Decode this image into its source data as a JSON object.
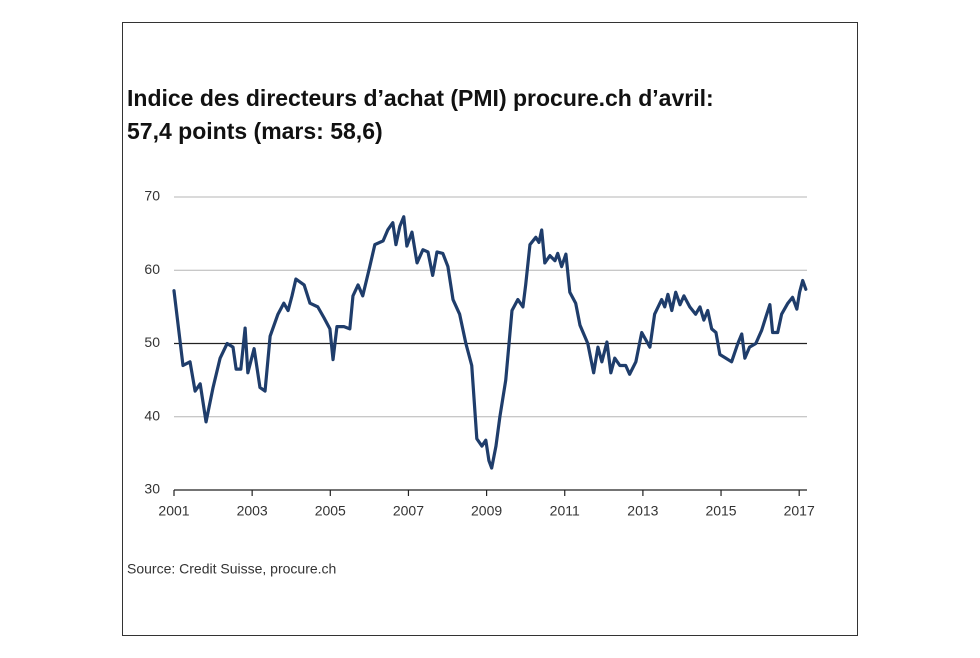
{
  "chart_data": {
    "type": "line",
    "title": [
      "Indice des directeurs d’achat (PMI) procure.ch d’avril:",
      "57,4 points (mars: 58,6)"
    ],
    "source": "Source: Credit Suisse, procure.ch",
    "x": [
      2001.0,
      2001.23,
      2001.41,
      2001.54,
      2001.67,
      2001.82,
      2002.0,
      2002.18,
      2002.36,
      2002.51,
      2002.59,
      2002.71,
      2002.82,
      2002.89,
      2003.05,
      2003.2,
      2003.33,
      2003.46,
      2003.66,
      2003.81,
      2003.92,
      2004.02,
      2004.12,
      2004.33,
      2004.48,
      2004.68,
      2004.84,
      2004.99,
      2005.07,
      2005.17,
      2005.35,
      2005.5,
      2005.58,
      2005.71,
      2005.83,
      2006.01,
      2006.14,
      2006.35,
      2006.47,
      2006.6,
      2006.68,
      2006.78,
      2006.88,
      2006.96,
      2007.09,
      2007.22,
      2007.37,
      2007.5,
      2007.62,
      2007.73,
      2007.88,
      2008.01,
      2008.14,
      2008.31,
      2008.47,
      2008.62,
      2008.75,
      2008.88,
      2008.98,
      2009.06,
      2009.13,
      2009.24,
      2009.34,
      2009.49,
      2009.65,
      2009.8,
      2009.93,
      2010.0,
      2010.11,
      2010.26,
      2010.34,
      2010.41,
      2010.49,
      2010.62,
      2010.75,
      2010.82,
      2010.92,
      2011.03,
      2011.13,
      2011.28,
      2011.39,
      2011.59,
      2011.74,
      2011.85,
      2011.95,
      2012.08,
      2012.18,
      2012.28,
      2012.41,
      2012.56,
      2012.66,
      2012.82,
      2012.97,
      2013.18,
      2013.3,
      2013.48,
      2013.56,
      2013.64,
      2013.74,
      2013.84,
      2013.95,
      2014.05,
      2014.2,
      2014.35,
      2014.46,
      2014.56,
      2014.66,
      2014.76,
      2014.87,
      2014.97,
      2015.12,
      2015.27,
      2015.43,
      2015.53,
      2015.61,
      2015.73,
      2015.89,
      2016.04,
      2016.14,
      2016.25,
      2016.32,
      2016.45,
      2016.55,
      2016.71,
      2016.83,
      2016.94,
      2017.01,
      2017.09,
      2017.17
    ],
    "series": [
      {
        "name": "PMI",
        "color": "#1f3d6b",
        "values": [
          57.2,
          47,
          47.5,
          43.5,
          44.5,
          39.3,
          44,
          48,
          50,
          49.5,
          46.5,
          46.5,
          52.1,
          46,
          49.3,
          44,
          43.5,
          51,
          54,
          55.5,
          54.5,
          56.5,
          58.8,
          58,
          55.5,
          55,
          53.5,
          52,
          47.8,
          52.3,
          52.3,
          52,
          56.5,
          58,
          56.5,
          60.5,
          63.5,
          64,
          65.5,
          66.5,
          63.5,
          66,
          67.3,
          63.3,
          65.2,
          61,
          62.8,
          62.5,
          59.3,
          62.5,
          62.3,
          60.5,
          56,
          54,
          50,
          47,
          37,
          36,
          36.8,
          34,
          33,
          36,
          40,
          45,
          54.5,
          56,
          55,
          58,
          63.5,
          64.5,
          63.8,
          65.5,
          61,
          62,
          61.3,
          62.3,
          60.5,
          62.2,
          57,
          55.5,
          52.5,
          50,
          46,
          49.5,
          47.5,
          50.2,
          46,
          48,
          47,
          47,
          45.8,
          47.5,
          51.5,
          49.5,
          54,
          56,
          55,
          56.7,
          54.5,
          57,
          55.3,
          56.5,
          55,
          54,
          55,
          53.2,
          54.5,
          52,
          51.5,
          48.5,
          48,
          47.5,
          50,
          51.3,
          48,
          49.5,
          50,
          51.8,
          53.5,
          55.3,
          51.5,
          51.5,
          54,
          55.5,
          56.3,
          54.7,
          57,
          58.6,
          57.4
        ]
      }
    ],
    "xlim": [
      2001,
      2017.2
    ],
    "xticks": [
      2001,
      2003,
      2005,
      2007,
      2009,
      2011,
      2013,
      2015,
      2017
    ],
    "ylim": [
      30,
      70
    ],
    "yticks": [
      30,
      40,
      50,
      60,
      70
    ],
    "reference_line": 50,
    "grid": true
  }
}
